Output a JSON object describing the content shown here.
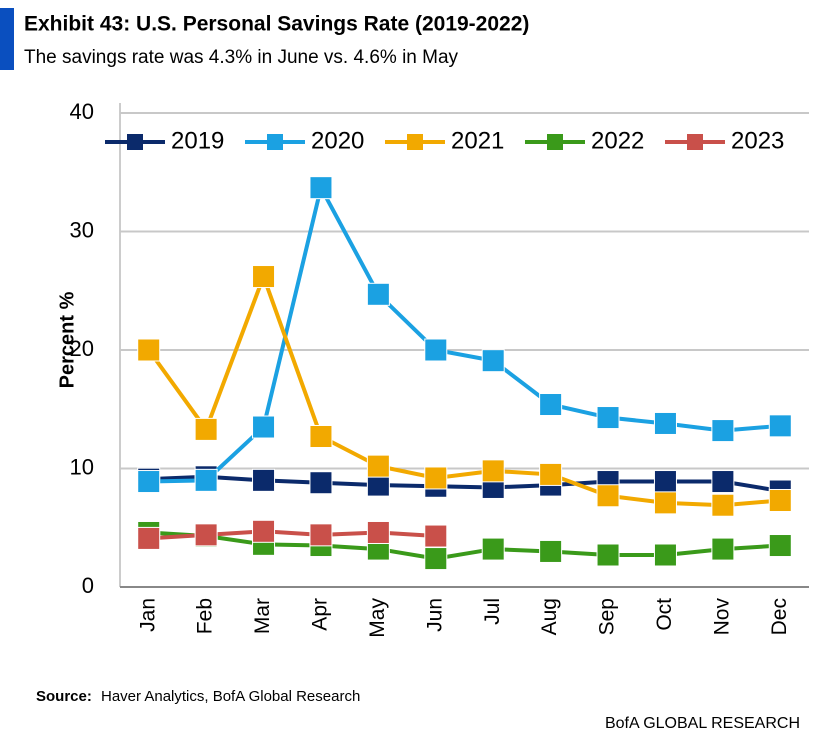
{
  "chart_data": {
    "type": "line",
    "title": "Exhibit 43: U.S. Personal Savings Rate (2019-2022)",
    "subtitle": "The savings rate was 4.3% in June vs. 4.6% in May",
    "y_label": "Percent %",
    "source_label": "Source:",
    "source": "Haver Analytics, BofA Global Research",
    "footer": "BofA GLOBAL RESEARCH",
    "categories": [
      "Jan",
      "Feb",
      "Mar",
      "Apr",
      "May",
      "Jun",
      "Jul",
      "Aug",
      "Sep",
      "Oct",
      "Nov",
      "Dec"
    ],
    "series": [
      {
        "name": "2019",
        "color": "#0b2a6b",
        "values": [
          9.1,
          9.3,
          9.0,
          8.8,
          8.6,
          8.5,
          8.4,
          8.6,
          8.9,
          8.9,
          8.9,
          8.1
        ]
      },
      {
        "name": "2020",
        "color": "#1ba1e2",
        "values": [
          8.9,
          9.0,
          13.5,
          33.7,
          24.7,
          20.0,
          19.1,
          15.4,
          14.3,
          13.8,
          13.2,
          13.6
        ]
      },
      {
        "name": "2021",
        "color": "#f2a900",
        "values": [
          20.0,
          13.3,
          26.2,
          12.7,
          10.2,
          9.2,
          9.8,
          9.5,
          7.7,
          7.1,
          6.9,
          7.3
        ]
      },
      {
        "name": "2022",
        "color": "#3a9a1a",
        "values": [
          4.6,
          4.3,
          3.6,
          3.5,
          3.2,
          2.4,
          3.2,
          3.0,
          2.7,
          2.7,
          3.2,
          3.5
        ]
      },
      {
        "name": "2023",
        "color": "#c9504a",
        "values": [
          4.1,
          4.4,
          4.7,
          4.4,
          4.6,
          4.3,
          null,
          null,
          null,
          null,
          null,
          null
        ]
      }
    ],
    "ylim": [
      0,
      40
    ],
    "yticks": [
      0,
      10,
      20,
      30,
      40
    ],
    "grid": true,
    "legend": "top"
  }
}
